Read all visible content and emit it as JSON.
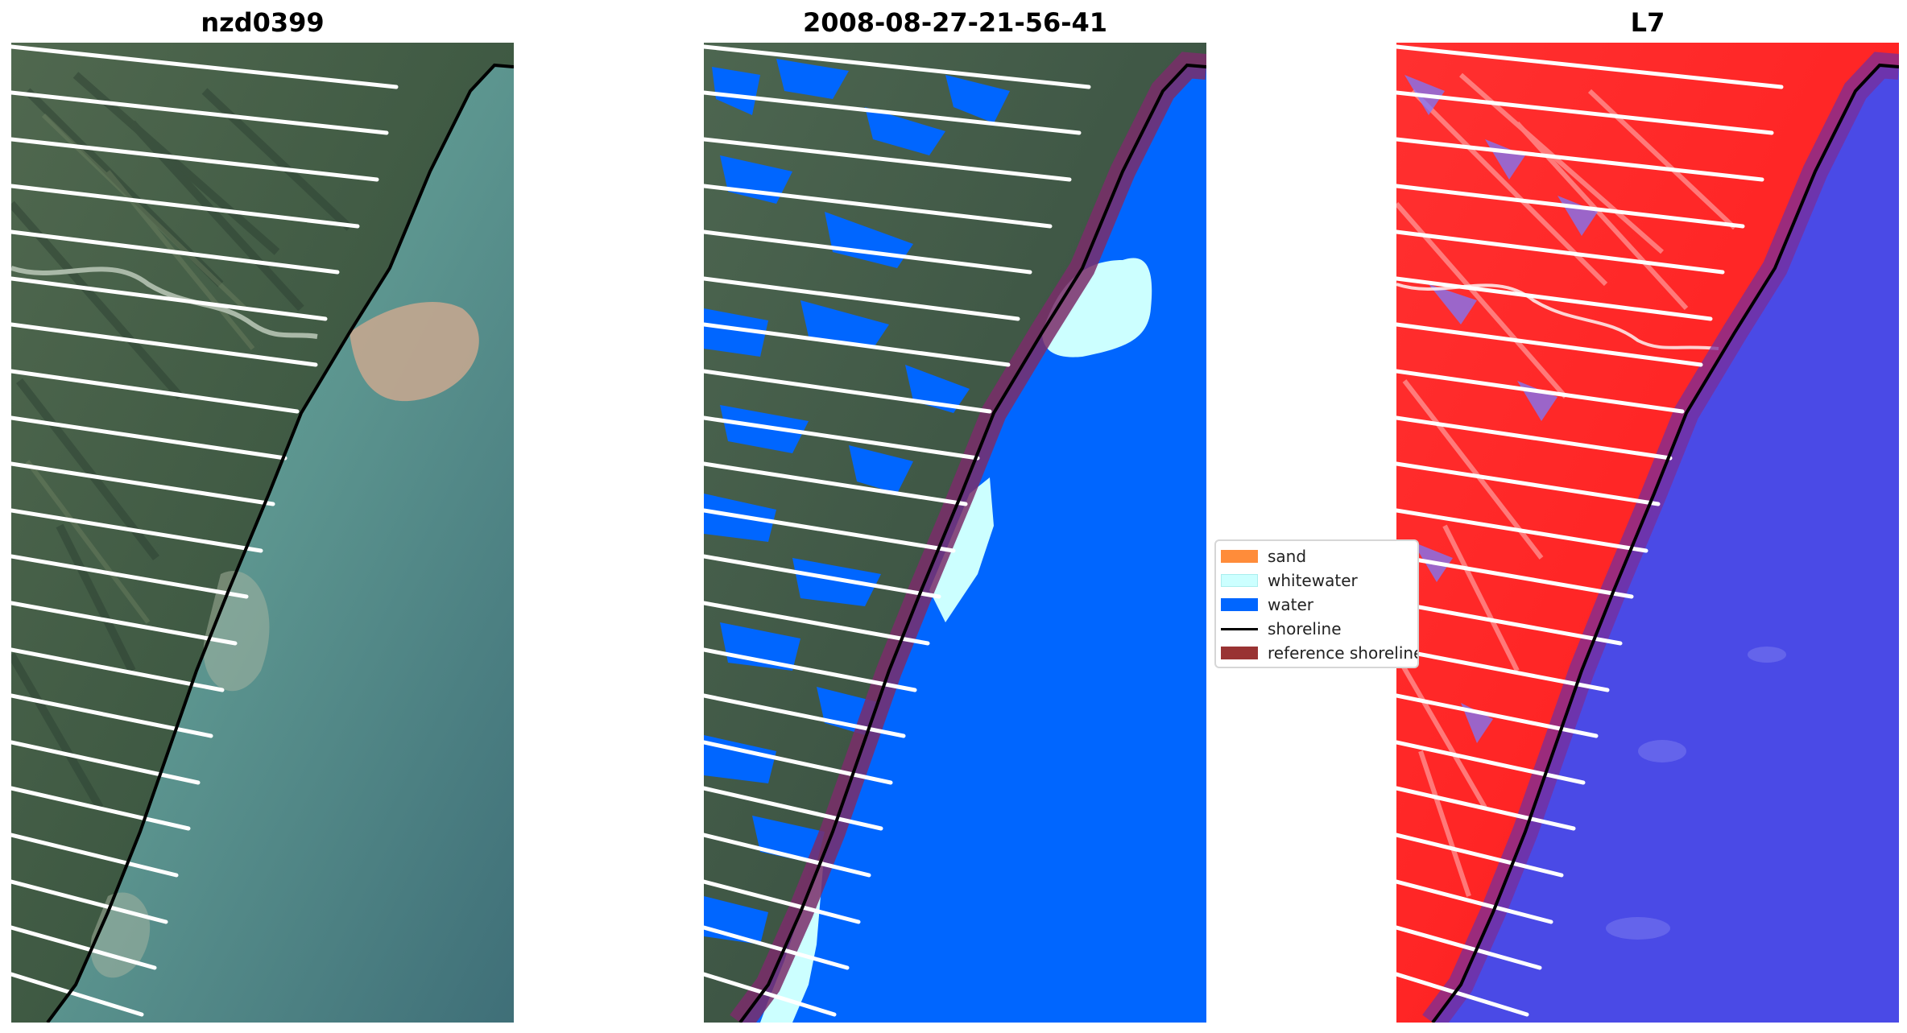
{
  "panels": [
    {
      "title": "nzd0399"
    },
    {
      "title": "2008-08-27-21-56-41"
    },
    {
      "title": "L7"
    }
  ],
  "legend": {
    "items": [
      {
        "label": "sand",
        "color": "#ff8c3a"
      },
      {
        "label": "whitewater",
        "color": "#ccffff"
      },
      {
        "label": "water",
        "color": "#0066ff"
      },
      {
        "label": "shoreline",
        "color": "#000000"
      },
      {
        "label": "reference shoreline",
        "color": "#993333"
      }
    ]
  },
  "colors": {
    "land_rgb": "#3f5a44",
    "sea_rgb": "#5e9a93",
    "plume": "#c9a88f",
    "water_class": "#0066ff",
    "index_land": "#ff2a2a",
    "index_water": "#4a4ae6",
    "reference_buffer": "#7a2d6a"
  }
}
